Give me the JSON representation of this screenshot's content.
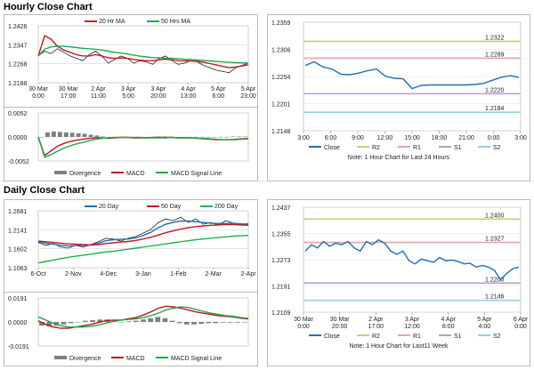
{
  "sections": {
    "hourly_title": "Hourly Close Chart",
    "daily_title": "Daily Close Chart"
  },
  "colors": {
    "close": "#1f6fb5",
    "ma_fast": "#c4181f",
    "ma_slow": "#1da94d",
    "ma_200": "#20b14b",
    "r2": "#b6d77a",
    "r1": "#e8a2a2",
    "s1": "#b99cc9",
    "s2": "#8fd3e6",
    "divergence": "#7f7f7f",
    "macd": "#c0151b",
    "signal": "#1da94d"
  },
  "chart_data": [
    {
      "id": "hourly_price",
      "type": "line",
      "ylim": [
        1.2188,
        1.2426
      ],
      "yticks": [
        "1.2426",
        "1.2347",
        "1.2268",
        "1.2188"
      ],
      "xticks": [
        "30 Mar\n0:00",
        "30 Mar\n17:00",
        "2 Apr\n11:00",
        "3 Apr\n5:00",
        "3 Apr\n20:00",
        "4 Apr\n13:00",
        "5 Apr\n6:00",
        "5 Apr\n23:00"
      ],
      "legend": [
        "20 Hr MA",
        "50 Hrs MA"
      ],
      "series": [
        {
          "name": "Close",
          "values": [
            1.23,
            1.232,
            1.231,
            1.233,
            1.2315,
            1.23,
            1.229,
            1.228,
            1.2305,
            1.232,
            1.23,
            1.227,
            1.2285,
            1.23,
            1.229,
            1.227,
            1.228,
            1.2275,
            1.2265,
            1.229,
            1.23,
            1.228,
            1.2265,
            1.227,
            1.228,
            1.2275,
            1.226,
            1.225,
            1.224,
            1.2235,
            1.223,
            1.225,
            1.226,
            1.227
          ]
        },
        {
          "name": "20 Hr MA",
          "values": [
            1.23,
            1.2385,
            1.237,
            1.234,
            1.2325,
            1.2315,
            1.2305,
            1.23,
            1.23,
            1.2305,
            1.23,
            1.2292,
            1.229,
            1.2292,
            1.229,
            1.2285,
            1.2282,
            1.228,
            1.228,
            1.2284,
            1.2286,
            1.2284,
            1.228,
            1.2279,
            1.2279,
            1.2277,
            1.2273,
            1.2268,
            1.2262,
            1.2256,
            1.2251,
            1.2253,
            1.2258,
            1.2263
          ]
        },
        {
          "name": "50 Hrs MA",
          "values": [
            1.23,
            1.2328,
            1.2338,
            1.234,
            1.234,
            1.2338,
            1.2335,
            1.2332,
            1.233,
            1.2328,
            1.2325,
            1.232,
            1.2315,
            1.2312,
            1.2308,
            1.2303,
            1.2299,
            1.2296,
            1.2293,
            1.2292,
            1.2291,
            1.229,
            1.2288,
            1.2286,
            1.2285,
            1.2283,
            1.2281,
            1.2279,
            1.2277,
            1.2275,
            1.2273,
            1.2272,
            1.2271,
            1.227
          ]
        }
      ]
    },
    {
      "id": "hourly_macd",
      "type": "bar",
      "ylim": [
        -0.0052,
        0.0052
      ],
      "yticks": [
        "0.0052",
        "0.0000",
        "-0.0052"
      ],
      "legend": [
        "Divergence",
        "MACD",
        "MACD Signal Line"
      ],
      "series": [
        {
          "name": "Divergence",
          "values": [
            0.0,
            0.001,
            0.0012,
            0.0011,
            0.001,
            0.0009,
            0.0008,
            0.0007,
            0.0005,
            0.0003,
            0.0001,
            -0.0001,
            -0.0001,
            0.0,
            0.0,
            -0.0001,
            -0.0001,
            0.0,
            0.0,
            0.0001,
            0.0001,
            0.0,
            0.0,
            0.0,
            0.0,
            0.0,
            -0.0001,
            -0.0001,
            -0.0001,
            0.0,
            0.0,
            0.0001,
            0.0001,
            0.0001
          ]
        },
        {
          "name": "MACD",
          "values": [
            0.0,
            -0.004,
            -0.003,
            -0.002,
            -0.0014,
            -0.001,
            -0.0007,
            -0.0005,
            -0.0003,
            -0.0002,
            -0.0002,
            -0.0003,
            -0.0002,
            -0.0001,
            -0.0001,
            -0.0002,
            -0.0002,
            -0.0002,
            -0.0001,
            -0.0001,
            -0.0001,
            -0.0001,
            -0.0002,
            -0.0002,
            -0.0002,
            -0.0003,
            -0.0004,
            -0.0005,
            -0.0006,
            -0.0006,
            -0.0006,
            -0.0005,
            -0.0004,
            -0.0003
          ]
        },
        {
          "name": "MACD Signal Line",
          "values": [
            0.0,
            -0.0044,
            -0.0038,
            -0.0031,
            -0.0024,
            -0.0019,
            -0.0015,
            -0.0012,
            -0.0008,
            -0.0005,
            -0.0003,
            -0.0002,
            -0.0001,
            -0.0001,
            -0.0001,
            -0.0001,
            -0.0001,
            -0.0002,
            -0.0002,
            -0.0002,
            -0.0002,
            -0.0001,
            -0.0002,
            -0.0002,
            -0.0002,
            -0.0003,
            -0.0003,
            -0.0004,
            -0.0005,
            -0.0006,
            -0.0006,
            -0.0006,
            -0.0005,
            -0.0004
          ]
        }
      ]
    },
    {
      "id": "hourly_pivots",
      "type": "line",
      "ylim": [
        1.2148,
        1.2359
      ],
      "yticks": [
        "1.2359",
        "1.2306",
        "1.2254",
        "1.2201",
        "1.2148"
      ],
      "xticks": [
        "3:00",
        "6:00",
        "9:00",
        "12:00",
        "15:00",
        "18:00",
        "21:00",
        "0:00",
        "3:00"
      ],
      "levels": [
        {
          "name": "R2",
          "value": 1.2322,
          "label": "1.2322"
        },
        {
          "name": "R1",
          "value": 1.2289,
          "label": "1.2289"
        },
        {
          "name": "S1",
          "value": 1.222,
          "label": "1.2220"
        },
        {
          "name": "S2",
          "value": 1.2184,
          "label": "1.2184"
        }
      ],
      "legend": [
        "Close",
        "R2",
        "R1",
        "S1",
        "S2"
      ],
      "note": "Note: 1 Hour Chart for Last 24 Hours",
      "series": [
        {
          "name": "Close",
          "values": [
            1.2275,
            1.2282,
            1.2272,
            1.2268,
            1.2258,
            1.2257,
            1.226,
            1.2265,
            1.2268,
            1.2254,
            1.225,
            1.2249,
            1.223,
            1.2236,
            1.2237,
            1.2237,
            1.2237,
            1.2237,
            1.2237,
            1.2238,
            1.224,
            1.2246,
            1.2252,
            1.2255,
            1.2252
          ]
        }
      ]
    },
    {
      "id": "daily_price",
      "type": "line",
      "ylim": [
        1.1063,
        1.2681
      ],
      "yticks": [
        "1.2681",
        "1.2141",
        "1.1602",
        "1.1063"
      ],
      "xticks": [
        "6-Oct",
        "2-Nov",
        "4-Dec",
        "3-Jan",
        "1-Feb",
        "2-Mar",
        "2-Apr"
      ],
      "legend": [
        "20 Day",
        "50 Day",
        "200 Day"
      ],
      "series": [
        {
          "name": "Close",
          "values": [
            1.178,
            1.17,
            1.175,
            1.165,
            1.162,
            1.17,
            1.165,
            1.172,
            1.18,
            1.19,
            1.188,
            1.182,
            1.19,
            1.195,
            1.205,
            1.215,
            1.235,
            1.245,
            1.24,
            1.25,
            1.235,
            1.245,
            1.23,
            1.235,
            1.228,
            1.24,
            1.233,
            1.228,
            1.232
          ]
        },
        {
          "name": "20 Day",
          "values": [
            1.18,
            1.176,
            1.173,
            1.17,
            1.168,
            1.169,
            1.17,
            1.171,
            1.176,
            1.183,
            1.186,
            1.187,
            1.188,
            1.191,
            1.198,
            1.207,
            1.22,
            1.23,
            1.235,
            1.239,
            1.239,
            1.237,
            1.235,
            1.233,
            1.232,
            1.232,
            1.233,
            1.231,
            1.23
          ]
        },
        {
          "name": "50 Day",
          "values": [
            1.182,
            1.18,
            1.178,
            1.176,
            1.174,
            1.173,
            1.172,
            1.171,
            1.172,
            1.175,
            1.177,
            1.179,
            1.181,
            1.184,
            1.188,
            1.193,
            1.199,
            1.206,
            1.211,
            1.216,
            1.22,
            1.223,
            1.225,
            1.227,
            1.228,
            1.229,
            1.229,
            1.228,
            1.227
          ]
        },
        {
          "name": "200 Day",
          "values": [
            1.12,
            1.124,
            1.128,
            1.132,
            1.136,
            1.139,
            1.142,
            1.145,
            1.148,
            1.151,
            1.153,
            1.156,
            1.159,
            1.162,
            1.165,
            1.168,
            1.171,
            1.174,
            1.177,
            1.18,
            1.183,
            1.186,
            1.188,
            1.19,
            1.192,
            1.194,
            1.196,
            1.197,
            1.198
          ]
        }
      ]
    },
    {
      "id": "daily_macd",
      "type": "bar",
      "ylim": [
        -0.0191,
        0.0191
      ],
      "yticks": [
        "0.0191",
        "0.0000",
        "-0.0191"
      ],
      "legend": [
        "Divergence",
        "MACD",
        "MACD Signal Line"
      ],
      "series": [
        {
          "name": "Divergence",
          "values": [
            -0.003,
            -0.0035,
            -0.003,
            -0.002,
            -0.001,
            0.0,
            0.001,
            0.0015,
            0.002,
            0.002,
            0.001,
            0.0,
            0.0005,
            0.001,
            0.002,
            0.003,
            0.004,
            0.003,
            0.001,
            -0.001,
            -0.002,
            -0.002,
            -0.0015,
            -0.001,
            -0.001,
            -0.0005,
            -0.0005,
            -0.0005,
            -0.0003
          ]
        },
        {
          "name": "MACD",
          "values": [
            0.001,
            -0.002,
            -0.004,
            -0.005,
            -0.005,
            -0.004,
            -0.003,
            -0.002,
            -0.0005,
            0.001,
            0.0015,
            0.0015,
            0.0025,
            0.0035,
            0.0055,
            0.008,
            0.011,
            0.0125,
            0.012,
            0.011,
            0.0095,
            0.008,
            0.007,
            0.006,
            0.005,
            0.0045,
            0.004,
            0.003,
            0.0025
          ]
        },
        {
          "name": "MACD Signal Line",
          "values": [
            0.004,
            0.0015,
            -0.001,
            -0.003,
            -0.004,
            -0.004,
            -0.004,
            -0.0035,
            -0.0025,
            -0.001,
            0.0005,
            0.0015,
            0.002,
            0.0025,
            0.0035,
            0.005,
            0.007,
            0.0095,
            0.011,
            0.012,
            0.0115,
            0.01,
            0.0085,
            0.007,
            0.006,
            0.005,
            0.0045,
            0.0035,
            0.0028
          ]
        }
      ]
    },
    {
      "id": "daily_pivots",
      "type": "line",
      "ylim": [
        1.2109,
        1.2437
      ],
      "yticks": [
        "1.2437",
        "1.2355",
        "1.2273",
        "1.2191",
        "1.2109"
      ],
      "xticks": [
        "30 Mar\n0:00",
        "30 Mar\n20:00",
        "2 Apr\n17:00",
        "3 Apr\n12:00",
        "4 Apr\n8:00",
        "5 Apr\n4:00",
        "6 Apr\n0:00"
      ],
      "levels": [
        {
          "name": "R2",
          "value": 1.24,
          "label": "1.2400"
        },
        {
          "name": "R1",
          "value": 1.2327,
          "label": "1.2327"
        },
        {
          "name": "S1",
          "value": 1.22,
          "label": "1.2200"
        },
        {
          "name": "S2",
          "value": 1.2146,
          "label": "1.2146"
        }
      ],
      "legend": [
        "Close",
        "R2",
        "R1",
        "S1",
        "S2"
      ],
      "note": "Note: 1 Hour Chart for Last11 Week",
      "series": [
        {
          "name": "Close",
          "values": [
            1.23,
            1.232,
            1.231,
            1.233,
            1.2315,
            1.2325,
            1.232,
            1.233,
            1.231,
            1.23,
            1.233,
            1.232,
            1.2335,
            1.2325,
            1.23,
            1.229,
            1.23,
            1.227,
            1.226,
            1.2275,
            1.227,
            1.2265,
            1.228,
            1.227,
            1.2272,
            1.2268,
            1.226,
            1.2262,
            1.225,
            1.2255,
            1.225,
            1.224,
            1.221,
            1.223,
            1.2245,
            1.225
          ]
        }
      ]
    }
  ]
}
